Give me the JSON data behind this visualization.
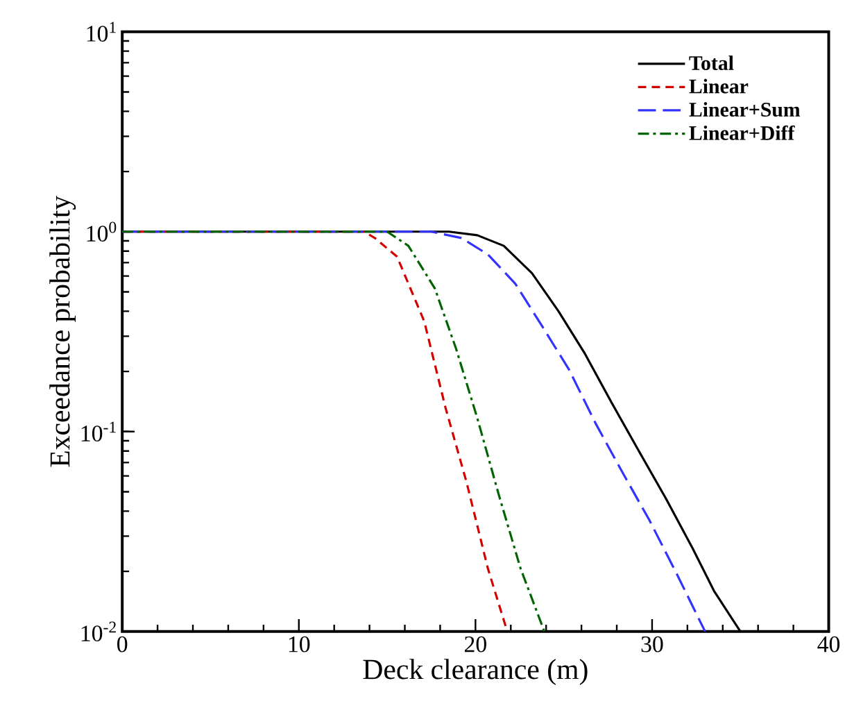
{
  "chart_data": {
    "type": "line",
    "xlabel": "Deck clearance (m)",
    "ylabel": "Exceedance probability",
    "log": "y",
    "xlim": [
      0,
      40
    ],
    "ylim": [
      0.01,
      10
    ],
    "xticks": [
      0,
      10,
      20,
      30,
      40
    ],
    "yticks": [
      {
        "value": 0.01,
        "label": "10$^{-2}$"
      },
      {
        "value": 0.1,
        "label": "10$^{-1}$"
      },
      {
        "value": 1,
        "label": "10$^{0}$"
      },
      {
        "value": 10,
        "label": "10$^{1}$"
      }
    ],
    "grid": false,
    "legend": "top right",
    "marker": "none",
    "series": [
      {
        "name": "Total",
        "color": "#000000",
        "line_style": "solid",
        "x": [
          0,
          18.5,
          20.1,
          21.6,
          23.2,
          24.7,
          26.2,
          27.7,
          29.25,
          30.8,
          32.3,
          33.5,
          35.0
        ],
        "values": [
          1,
          1,
          0.96,
          0.85,
          0.62,
          0.4,
          0.245,
          0.14,
          0.08,
          0.046,
          0.026,
          0.016,
          0.01
        ]
      },
      {
        "name": "Linear",
        "color": "#d40000",
        "line_style": "dashed",
        "x": [
          0,
          13.7,
          14.3,
          15.56,
          17.1,
          18.3,
          19.5,
          20.7,
          21.8
        ],
        "values": [
          1,
          1,
          0.93,
          0.75,
          0.356,
          0.132,
          0.0556,
          0.0207,
          0.01
        ]
      },
      {
        "name": "Linear+Sum",
        "color": "#3333ff",
        "line_style": "long dashed",
        "x": [
          0,
          17.5,
          19.2,
          20.7,
          22.25,
          23.8,
          25.3,
          26.8,
          28.3,
          29.85,
          31.4,
          33.0
        ],
        "values": [
          1,
          1,
          0.93,
          0.77,
          0.55,
          0.334,
          0.204,
          0.11,
          0.063,
          0.036,
          0.0194,
          0.01
        ]
      },
      {
        "name": "Linear+Diff",
        "color": "#006400",
        "line_style": "dash dot",
        "x": [
          0,
          15.0,
          16.2,
          17.7,
          18.9,
          20.1,
          21.3,
          22.55,
          23.9
        ],
        "values": [
          1,
          1,
          0.85,
          0.52,
          0.26,
          0.117,
          0.049,
          0.0207,
          0.01
        ]
      }
    ]
  }
}
